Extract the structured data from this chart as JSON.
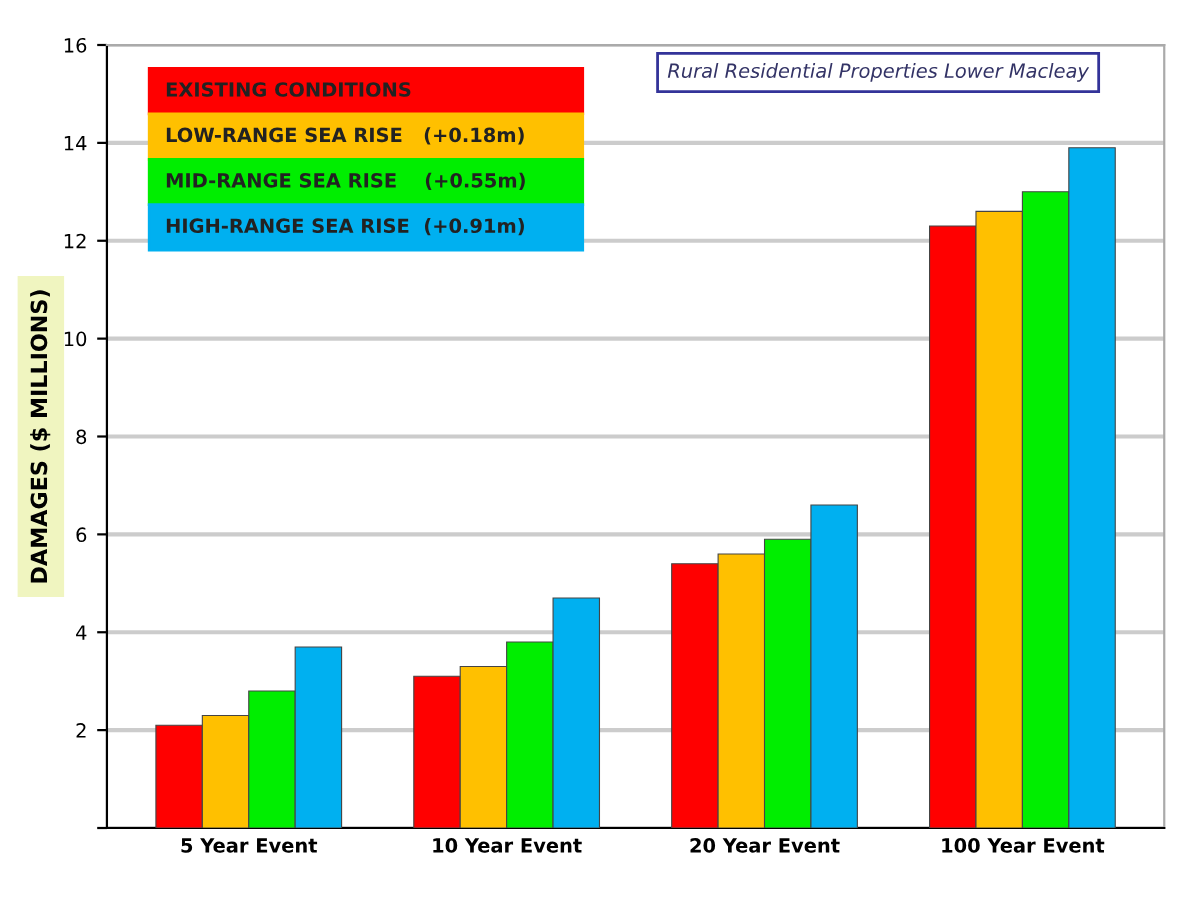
{
  "chart_data": {
    "type": "bar",
    "title": "Rural Residential Properties Lower Macleay",
    "ylabel": "DAMAGES ($ MILLIONS)",
    "categories": [
      "5 Year Event",
      "10 Year Event",
      "20 Year Event",
      "100 Year Event"
    ],
    "series": [
      {
        "name": "EXISTING CONDITIONS",
        "color": "#ff0000",
        "values": [
          2.1,
          3.1,
          5.4,
          12.3
        ]
      },
      {
        "name": "LOW-RANGE SEA RISE   (+0.18m)",
        "color": "#ffc000",
        "values": [
          2.3,
          3.3,
          5.6,
          12.6
        ]
      },
      {
        "name": "MID-RANGE SEA RISE    (+0.55m)",
        "color": "#00ee00",
        "values": [
          2.8,
          3.8,
          5.9,
          13.0
        ]
      },
      {
        "name": "HIGH-RANGE SEA RISE  (+0.91m)",
        "color": "#00b0f0",
        "values": [
          3.7,
          4.7,
          6.6,
          13.9
        ]
      }
    ],
    "ylim": [
      0,
      16
    ],
    "yticks": [
      {
        "value": 0,
        "label": null
      },
      2,
      4,
      6,
      8,
      10,
      12,
      14,
      16
    ],
    "grid": "y",
    "legend": "top left"
  }
}
